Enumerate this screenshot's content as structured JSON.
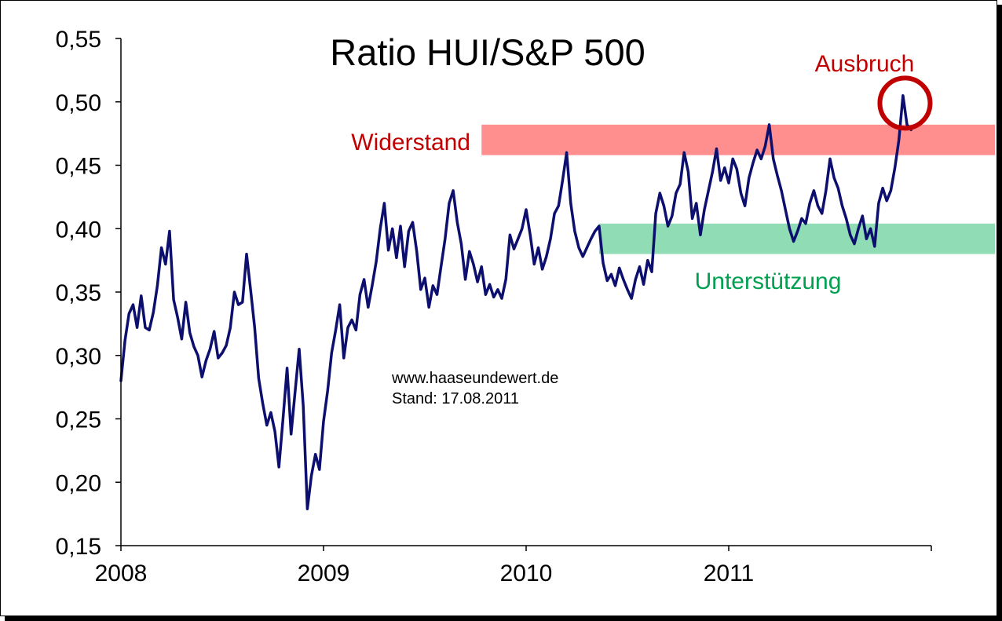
{
  "chart_data": {
    "type": "line",
    "title": "Ratio HUI/S&P 500",
    "xlabel": "",
    "ylabel": "",
    "x_range": [
      2008.0,
      2012.0
    ],
    "ylim": [
      0.15,
      0.55
    ],
    "yticks": [
      0.55,
      0.5,
      0.45,
      0.4,
      0.35,
      0.3,
      0.25,
      0.2,
      0.15
    ],
    "ytick_labels": [
      "0,55",
      "0,50",
      "0,45",
      "0,40",
      "0,35",
      "0,30",
      "0,25",
      "0,20",
      "0,15"
    ],
    "xticks": [
      2008,
      2009,
      2010,
      2011,
      2012
    ],
    "xtick_labels": [
      "2008",
      "2009",
      "2010",
      "2011",
      ""
    ],
    "grid": false,
    "series_color": "#0d0f6e",
    "series": [
      {
        "values": [
          [
            2008.0,
            0.28
          ],
          [
            2008.02,
            0.312
          ],
          [
            2008.04,
            0.333
          ],
          [
            2008.06,
            0.34
          ],
          [
            2008.08,
            0.322
          ],
          [
            2008.1,
            0.347
          ],
          [
            2008.12,
            0.322
          ],
          [
            2008.14,
            0.32
          ],
          [
            2008.16,
            0.334
          ],
          [
            2008.18,
            0.355
          ],
          [
            2008.2,
            0.385
          ],
          [
            2008.22,
            0.372
          ],
          [
            2008.24,
            0.398
          ],
          [
            2008.26,
            0.344
          ],
          [
            2008.28,
            0.33
          ],
          [
            2008.3,
            0.313
          ],
          [
            2008.32,
            0.342
          ],
          [
            2008.34,
            0.318
          ],
          [
            2008.36,
            0.307
          ],
          [
            2008.38,
            0.3
          ],
          [
            2008.4,
            0.283
          ],
          [
            2008.42,
            0.296
          ],
          [
            2008.44,
            0.305
          ],
          [
            2008.46,
            0.319
          ],
          [
            2008.48,
            0.298
          ],
          [
            2008.5,
            0.302
          ],
          [
            2008.52,
            0.308
          ],
          [
            2008.54,
            0.322
          ],
          [
            2008.56,
            0.35
          ],
          [
            2008.58,
            0.34
          ],
          [
            2008.6,
            0.342
          ],
          [
            2008.62,
            0.38
          ],
          [
            2008.64,
            0.352
          ],
          [
            2008.66,
            0.322
          ],
          [
            2008.68,
            0.282
          ],
          [
            2008.7,
            0.262
          ],
          [
            2008.72,
            0.245
          ],
          [
            2008.74,
            0.255
          ],
          [
            2008.76,
            0.24
          ],
          [
            2008.78,
            0.212
          ],
          [
            2008.8,
            0.25
          ],
          [
            2008.82,
            0.29
          ],
          [
            2008.84,
            0.238
          ],
          [
            2008.86,
            0.272
          ],
          [
            2008.88,
            0.305
          ],
          [
            2008.9,
            0.26
          ],
          [
            2008.92,
            0.179
          ],
          [
            2008.94,
            0.205
          ],
          [
            2008.96,
            0.222
          ],
          [
            2008.98,
            0.21
          ],
          [
            2009.0,
            0.248
          ],
          [
            2009.02,
            0.272
          ],
          [
            2009.04,
            0.302
          ],
          [
            2009.06,
            0.32
          ],
          [
            2009.08,
            0.34
          ],
          [
            2009.1,
            0.298
          ],
          [
            2009.12,
            0.322
          ],
          [
            2009.14,
            0.328
          ],
          [
            2009.16,
            0.32
          ],
          [
            2009.18,
            0.348
          ],
          [
            2009.2,
            0.36
          ],
          [
            2009.22,
            0.338
          ],
          [
            2009.24,
            0.355
          ],
          [
            2009.26,
            0.374
          ],
          [
            2009.28,
            0.4
          ],
          [
            2009.3,
            0.42
          ],
          [
            2009.32,
            0.383
          ],
          [
            2009.34,
            0.4
          ],
          [
            2009.36,
            0.377
          ],
          [
            2009.38,
            0.402
          ],
          [
            2009.4,
            0.37
          ],
          [
            2009.42,
            0.398
          ],
          [
            2009.44,
            0.405
          ],
          [
            2009.46,
            0.382
          ],
          [
            2009.48,
            0.352
          ],
          [
            2009.5,
            0.361
          ],
          [
            2009.52,
            0.338
          ],
          [
            2009.54,
            0.355
          ],
          [
            2009.56,
            0.348
          ],
          [
            2009.58,
            0.37
          ],
          [
            2009.6,
            0.392
          ],
          [
            2009.62,
            0.42
          ],
          [
            2009.64,
            0.43
          ],
          [
            2009.66,
            0.405
          ],
          [
            2009.68,
            0.388
          ],
          [
            2009.7,
            0.36
          ],
          [
            2009.72,
            0.382
          ],
          [
            2009.74,
            0.372
          ],
          [
            2009.76,
            0.358
          ],
          [
            2009.78,
            0.37
          ],
          [
            2009.8,
            0.348
          ],
          [
            2009.82,
            0.356
          ],
          [
            2009.84,
            0.346
          ],
          [
            2009.86,
            0.352
          ],
          [
            2009.88,
            0.345
          ],
          [
            2009.9,
            0.36
          ],
          [
            2009.92,
            0.395
          ],
          [
            2009.94,
            0.384
          ],
          [
            2009.96,
            0.392
          ],
          [
            2009.98,
            0.4
          ],
          [
            2010.0,
            0.415
          ],
          [
            2010.02,
            0.395
          ],
          [
            2010.04,
            0.372
          ],
          [
            2010.06,
            0.385
          ],
          [
            2010.08,
            0.368
          ],
          [
            2010.1,
            0.378
          ],
          [
            2010.12,
            0.392
          ],
          [
            2010.14,
            0.412
          ],
          [
            2010.16,
            0.418
          ],
          [
            2010.18,
            0.438
          ],
          [
            2010.2,
            0.46
          ],
          [
            2010.22,
            0.42
          ],
          [
            2010.24,
            0.398
          ],
          [
            2010.26,
            0.385
          ],
          [
            2010.28,
            0.378
          ],
          [
            2010.3,
            0.385
          ],
          [
            2010.32,
            0.392
          ],
          [
            2010.34,
            0.398
          ],
          [
            2010.36,
            0.402
          ],
          [
            2010.38,
            0.373
          ],
          [
            2010.4,
            0.359
          ],
          [
            2010.42,
            0.364
          ],
          [
            2010.44,
            0.355
          ],
          [
            2010.46,
            0.369
          ],
          [
            2010.48,
            0.36
          ],
          [
            2010.5,
            0.352
          ],
          [
            2010.52,
            0.345
          ],
          [
            2010.54,
            0.36
          ],
          [
            2010.56,
            0.37
          ],
          [
            2010.58,
            0.356
          ],
          [
            2010.6,
            0.375
          ],
          [
            2010.62,
            0.366
          ],
          [
            2010.64,
            0.412
          ],
          [
            2010.66,
            0.428
          ],
          [
            2010.68,
            0.418
          ],
          [
            2010.7,
            0.402
          ],
          [
            2010.72,
            0.41
          ],
          [
            2010.74,
            0.428
          ],
          [
            2010.76,
            0.435
          ],
          [
            2010.78,
            0.46
          ],
          [
            2010.8,
            0.445
          ],
          [
            2010.82,
            0.408
          ],
          [
            2010.84,
            0.42
          ],
          [
            2010.86,
            0.395
          ],
          [
            2010.88,
            0.415
          ],
          [
            2010.9,
            0.43
          ],
          [
            2010.92,
            0.445
          ],
          [
            2010.94,
            0.463
          ],
          [
            2010.96,
            0.438
          ],
          [
            2010.98,
            0.448
          ],
          [
            2011.0,
            0.436
          ],
          [
            2011.02,
            0.455
          ],
          [
            2011.04,
            0.447
          ],
          [
            2011.06,
            0.428
          ],
          [
            2011.08,
            0.418
          ],
          [
            2011.1,
            0.44
          ],
          [
            2011.12,
            0.452
          ],
          [
            2011.14,
            0.462
          ],
          [
            2011.16,
            0.455
          ],
          [
            2011.18,
            0.465
          ],
          [
            2011.2,
            0.482
          ],
          [
            2011.22,
            0.455
          ],
          [
            2011.24,
            0.442
          ],
          [
            2011.26,
            0.43
          ],
          [
            2011.28,
            0.415
          ],
          [
            2011.3,
            0.4
          ],
          [
            2011.32,
            0.39
          ],
          [
            2011.34,
            0.398
          ],
          [
            2011.36,
            0.408
          ],
          [
            2011.38,
            0.404
          ],
          [
            2011.4,
            0.42
          ],
          [
            2011.42,
            0.43
          ],
          [
            2011.44,
            0.418
          ],
          [
            2011.46,
            0.412
          ],
          [
            2011.48,
            0.43
          ],
          [
            2011.5,
            0.455
          ],
          [
            2011.52,
            0.44
          ],
          [
            2011.54,
            0.432
          ],
          [
            2011.56,
            0.418
          ],
          [
            2011.58,
            0.408
          ],
          [
            2011.6,
            0.395
          ],
          [
            2011.62,
            0.388
          ],
          [
            2011.64,
            0.4
          ],
          [
            2011.66,
            0.41
          ],
          [
            2011.68,
            0.392
          ],
          [
            2011.7,
            0.4
          ],
          [
            2011.72,
            0.386
          ],
          [
            2011.74,
            0.42
          ],
          [
            2011.76,
            0.432
          ],
          [
            2011.78,
            0.422
          ],
          [
            2011.8,
            0.43
          ],
          [
            2011.82,
            0.448
          ],
          [
            2011.84,
            0.47
          ],
          [
            2011.86,
            0.505
          ],
          [
            2011.88,
            0.482
          ],
          [
            2011.9,
            0.478
          ]
        ]
      }
    ],
    "bands": [
      {
        "label": "Widerstand",
        "y_range": [
          0.458,
          0.482
        ],
        "x_range": [
          2009.78,
          2012.34
        ],
        "fill": "#ff8f8f",
        "label_color": "#c00000"
      },
      {
        "label": "Unterstützung",
        "y_range": [
          0.38,
          0.404
        ],
        "x_range": [
          2010.36,
          2012.34
        ],
        "fill": "#90dcb4",
        "label_color": "#00a050"
      }
    ],
    "annotations": [
      {
        "text": "Ausbruch",
        "color": "#c00000",
        "circle_at": [
          2011.87,
          0.499
        ]
      }
    ],
    "note_lines": [
      "www.haaseundewert.de",
      "Stand: 17.08.2011"
    ]
  }
}
